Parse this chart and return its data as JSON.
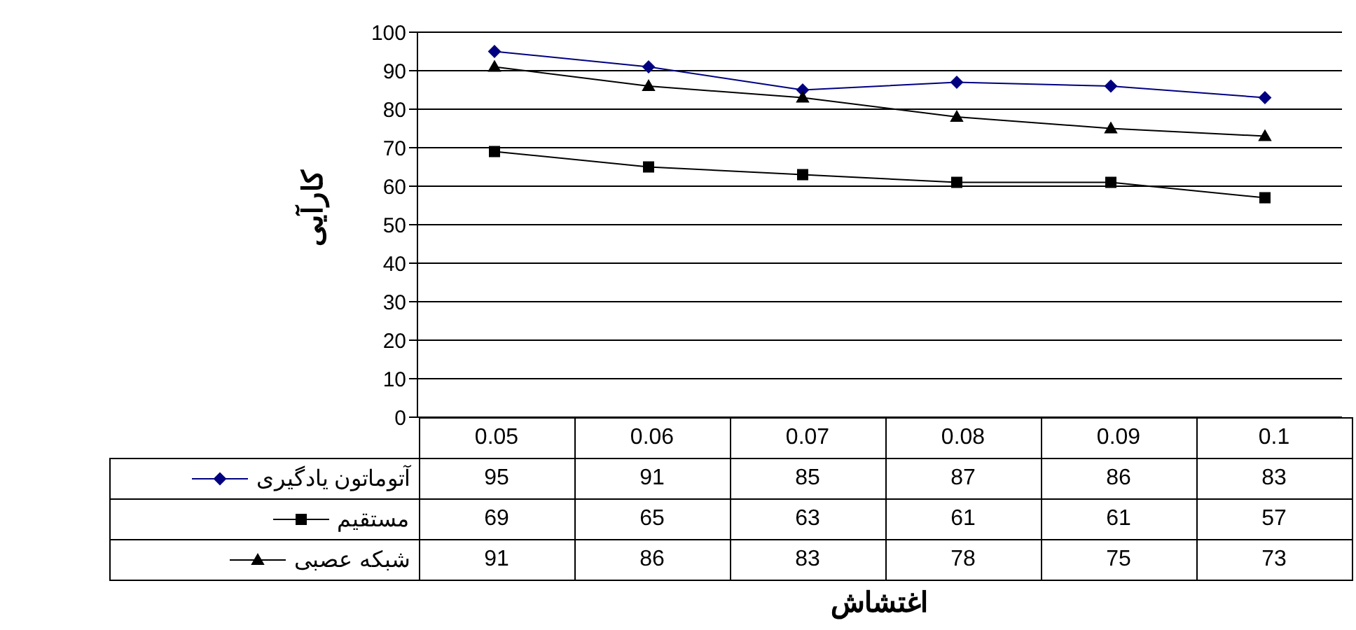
{
  "chart_data": {
    "type": "line",
    "xlabel": "اغتشاش",
    "ylabel": "کارآیی",
    "categories": [
      "0.05",
      "0.06",
      "0.07",
      "0.08",
      "0.09",
      "0.1"
    ],
    "ylim": [
      0,
      100
    ],
    "yticks": [
      0,
      10,
      20,
      30,
      40,
      50,
      60,
      70,
      80,
      90,
      100
    ],
    "grid": "y",
    "legend": "bottom",
    "data_labels": true,
    "series": [
      {
        "name": "آتوماتون یادگیری",
        "color": "#000080",
        "marker": "diamond",
        "values": [
          95,
          91,
          85,
          87,
          86,
          83
        ]
      },
      {
        "name": "مستقیم",
        "color": "#000000",
        "marker": "square",
        "values": [
          69,
          65,
          63,
          61,
          61,
          57
        ]
      },
      {
        "name": "شبکه عصبی",
        "color": "#000000",
        "marker": "triangle",
        "values": [
          91,
          86,
          83,
          78,
          75,
          73
        ]
      }
    ]
  }
}
